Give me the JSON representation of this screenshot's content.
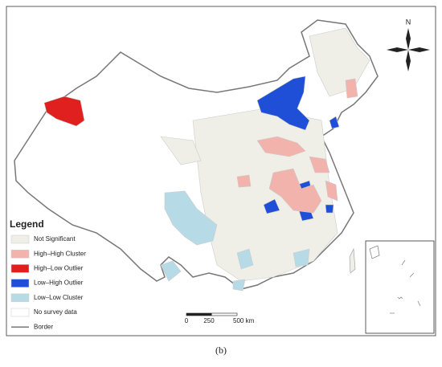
{
  "figure": {
    "caption": "(b)",
    "north": "N",
    "legend": {
      "title": "Legend",
      "items": [
        {
          "label": "Not Significant",
          "color": "#efefe8",
          "symbol": "patch"
        },
        {
          "label": "High–High Cluster",
          "color": "#f2b3ad",
          "symbol": "patch"
        },
        {
          "label": "High–Low Outlier",
          "color": "#e0201e",
          "symbol": "patch"
        },
        {
          "label": "Low–High Outlier",
          "color": "#1f4fd6",
          "symbol": "patch"
        },
        {
          "label": "Low–Low Cluster",
          "color": "#b7dbe6",
          "symbol": "patch"
        },
        {
          "label": "No survey data",
          "color": "#ffffff",
          "symbol": "patch"
        },
        {
          "label": "Border",
          "color": "#777777",
          "symbol": "line"
        }
      ]
    },
    "scale_bar": {
      "labels": [
        "0",
        "250",
        "500 km"
      ]
    }
  }
}
